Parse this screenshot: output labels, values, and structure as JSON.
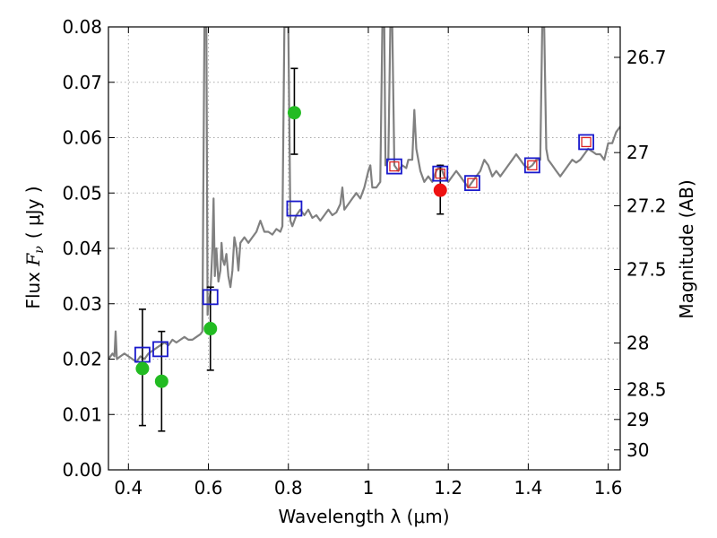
{
  "chart_data": {
    "type": "scatter",
    "xlabel": "Wavelength  λ (μm)",
    "ylabel_left": {
      "prefix": "Flux ",
      "symbol": "F",
      "subscript": "ν",
      "unit": "( μJy )"
    },
    "ylabel_right": "Magnitude (AB)",
    "xlim": [
      0.35,
      1.63
    ],
    "ylim": [
      0.0,
      0.08
    ],
    "grid": true,
    "x_ticks": [
      0.4,
      0.6,
      0.8,
      1.0,
      1.2,
      1.4,
      1.6
    ],
    "x_tick_labels": [
      "0.4",
      "0.6",
      "0.8",
      "1",
      "1.2",
      "1.4",
      "1.6"
    ],
    "y_ticks": [
      0.0,
      0.01,
      0.02,
      0.03,
      0.04,
      0.05,
      0.06,
      0.07,
      0.08
    ],
    "y_tick_labels": [
      "0.00",
      "0.01",
      "0.02",
      "0.03",
      "0.04",
      "0.05",
      "0.06",
      "0.07",
      "0.08"
    ],
    "right_axis_ticks": [
      {
        "label": "26.7",
        "flux": 0.0745
      },
      {
        "label": "27",
        "flux": 0.0573
      },
      {
        "label": "27.2",
        "flux": 0.0477
      },
      {
        "label": "27.5",
        "flux": 0.0362
      },
      {
        "label": "28",
        "flux": 0.0229
      },
      {
        "label": "28.5",
        "flux": 0.0145
      },
      {
        "label": "29",
        "flux": 0.0091
      },
      {
        "label": "30",
        "flux": 0.0036
      }
    ],
    "colors": {
      "spectrum": "#808080",
      "green_points": "#22bb22",
      "red_points": "#ee1111",
      "blue_squares": "#1a1acc",
      "red_squares": "#dd2222",
      "grid": "#aaaaaa",
      "errorbar": "#000000"
    },
    "spectrum": [
      [
        0.35,
        0.02
      ],
      [
        0.36,
        0.021
      ],
      [
        0.365,
        0.0205
      ],
      [
        0.368,
        0.025
      ],
      [
        0.371,
        0.02
      ],
      [
        0.38,
        0.0205
      ],
      [
        0.39,
        0.021
      ],
      [
        0.4,
        0.0205
      ],
      [
        0.41,
        0.02
      ],
      [
        0.42,
        0.0195
      ],
      [
        0.43,
        0.0205
      ],
      [
        0.44,
        0.02
      ],
      [
        0.45,
        0.021
      ],
      [
        0.46,
        0.0215
      ],
      [
        0.47,
        0.022
      ],
      [
        0.48,
        0.0225
      ],
      [
        0.49,
        0.023
      ],
      [
        0.5,
        0.0225
      ],
      [
        0.51,
        0.0235
      ],
      [
        0.52,
        0.023
      ],
      [
        0.53,
        0.0235
      ],
      [
        0.54,
        0.024
      ],
      [
        0.55,
        0.0235
      ],
      [
        0.56,
        0.0235
      ],
      [
        0.57,
        0.024
      ],
      [
        0.58,
        0.0245
      ],
      [
        0.585,
        0.025
      ],
      [
        0.59,
        0.08
      ],
      [
        0.595,
        0.08
      ],
      [
        0.598,
        0.028
      ],
      [
        0.6,
        0.03
      ],
      [
        0.605,
        0.032
      ],
      [
        0.61,
        0.04
      ],
      [
        0.613,
        0.049
      ],
      [
        0.616,
        0.035
      ],
      [
        0.62,
        0.04
      ],
      [
        0.625,
        0.034
      ],
      [
        0.63,
        0.036
      ],
      [
        0.633,
        0.041
      ],
      [
        0.636,
        0.038
      ],
      [
        0.64,
        0.037
      ],
      [
        0.645,
        0.039
      ],
      [
        0.65,
        0.035
      ],
      [
        0.655,
        0.033
      ],
      [
        0.66,
        0.036
      ],
      [
        0.665,
        0.042
      ],
      [
        0.67,
        0.04
      ],
      [
        0.675,
        0.036
      ],
      [
        0.68,
        0.041
      ],
      [
        0.69,
        0.042
      ],
      [
        0.7,
        0.041
      ],
      [
        0.71,
        0.042
      ],
      [
        0.72,
        0.043
      ],
      [
        0.73,
        0.045
      ],
      [
        0.74,
        0.043
      ],
      [
        0.75,
        0.043
      ],
      [
        0.76,
        0.0425
      ],
      [
        0.77,
        0.0435
      ],
      [
        0.78,
        0.043
      ],
      [
        0.785,
        0.044
      ],
      [
        0.79,
        0.08
      ],
      [
        0.8,
        0.08
      ],
      [
        0.805,
        0.045
      ],
      [
        0.81,
        0.044
      ],
      [
        0.82,
        0.046
      ],
      [
        0.83,
        0.047
      ],
      [
        0.84,
        0.046
      ],
      [
        0.85,
        0.047
      ],
      [
        0.86,
        0.0455
      ],
      [
        0.87,
        0.046
      ],
      [
        0.88,
        0.045
      ],
      [
        0.89,
        0.046
      ],
      [
        0.9,
        0.047
      ],
      [
        0.91,
        0.046
      ],
      [
        0.92,
        0.0465
      ],
      [
        0.93,
        0.048
      ],
      [
        0.935,
        0.051
      ],
      [
        0.94,
        0.047
      ],
      [
        0.95,
        0.048
      ],
      [
        0.96,
        0.049
      ],
      [
        0.97,
        0.05
      ],
      [
        0.98,
        0.049
      ],
      [
        0.99,
        0.051
      ],
      [
        1.0,
        0.054
      ],
      [
        1.005,
        0.055
      ],
      [
        1.01,
        0.051
      ],
      [
        1.02,
        0.051
      ],
      [
        1.03,
        0.052
      ],
      [
        1.035,
        0.08
      ],
      [
        1.04,
        0.08
      ],
      [
        1.043,
        0.055
      ],
      [
        1.05,
        0.056
      ],
      [
        1.055,
        0.08
      ],
      [
        1.06,
        0.08
      ],
      [
        1.065,
        0.055
      ],
      [
        1.075,
        0.054
      ],
      [
        1.085,
        0.055
      ],
      [
        1.095,
        0.0545
      ],
      [
        1.1,
        0.056
      ],
      [
        1.11,
        0.056
      ],
      [
        1.115,
        0.065
      ],
      [
        1.12,
        0.058
      ],
      [
        1.13,
        0.054
      ],
      [
        1.14,
        0.052
      ],
      [
        1.15,
        0.053
      ],
      [
        1.16,
        0.052
      ],
      [
        1.17,
        0.054
      ],
      [
        1.18,
        0.055
      ],
      [
        1.19,
        0.053
      ],
      [
        1.2,
        0.052
      ],
      [
        1.21,
        0.053
      ],
      [
        1.22,
        0.054
      ],
      [
        1.23,
        0.053
      ],
      [
        1.24,
        0.052
      ],
      [
        1.25,
        0.051
      ],
      [
        1.26,
        0.052
      ],
      [
        1.27,
        0.053
      ],
      [
        1.28,
        0.054
      ],
      [
        1.29,
        0.056
      ],
      [
        1.3,
        0.055
      ],
      [
        1.31,
        0.053
      ],
      [
        1.32,
        0.054
      ],
      [
        1.33,
        0.053
      ],
      [
        1.34,
        0.054
      ],
      [
        1.35,
        0.055
      ],
      [
        1.36,
        0.056
      ],
      [
        1.37,
        0.057
      ],
      [
        1.38,
        0.056
      ],
      [
        1.39,
        0.055
      ],
      [
        1.4,
        0.0545
      ],
      [
        1.41,
        0.055
      ],
      [
        1.42,
        0.056
      ],
      [
        1.43,
        0.056
      ],
      [
        1.435,
        0.08
      ],
      [
        1.44,
        0.08
      ],
      [
        1.445,
        0.058
      ],
      [
        1.45,
        0.056
      ],
      [
        1.46,
        0.055
      ],
      [
        1.47,
        0.054
      ],
      [
        1.48,
        0.053
      ],
      [
        1.49,
        0.054
      ],
      [
        1.5,
        0.055
      ],
      [
        1.51,
        0.056
      ],
      [
        1.52,
        0.0555
      ],
      [
        1.53,
        0.056
      ],
      [
        1.54,
        0.057
      ],
      [
        1.55,
        0.058
      ],
      [
        1.56,
        0.0575
      ],
      [
        1.57,
        0.057
      ],
      [
        1.58,
        0.057
      ],
      [
        1.59,
        0.056
      ],
      [
        1.6,
        0.059
      ],
      [
        1.61,
        0.059
      ],
      [
        1.62,
        0.061
      ],
      [
        1.63,
        0.062
      ]
    ],
    "green_points": [
      {
        "x": 0.435,
        "y": 0.0183,
        "yerr_low": 0.008,
        "yerr_high": 0.029
      },
      {
        "x": 0.483,
        "y": 0.016,
        "yerr_low": 0.007,
        "yerr_high": 0.025
      },
      {
        "x": 0.605,
        "y": 0.0255,
        "yerr_low": 0.018,
        "yerr_high": 0.033
      },
      {
        "x": 0.815,
        "y": 0.0645,
        "yerr_low": 0.057,
        "yerr_high": 0.0725
      }
    ],
    "red_points": [
      {
        "x": 1.18,
        "y": 0.0505,
        "yerr_low": 0.0462,
        "yerr_high": 0.055
      }
    ],
    "blue_squares": [
      {
        "x": 0.435,
        "y": 0.0208
      },
      {
        "x": 0.48,
        "y": 0.0218
      },
      {
        "x": 0.605,
        "y": 0.0312
      },
      {
        "x": 0.815,
        "y": 0.0472
      },
      {
        "x": 1.065,
        "y": 0.0548
      },
      {
        "x": 1.18,
        "y": 0.0535
      },
      {
        "x": 1.26,
        "y": 0.0518
      },
      {
        "x": 1.41,
        "y": 0.055
      },
      {
        "x": 1.545,
        "y": 0.0592
      }
    ],
    "red_squares": [
      {
        "x": 1.065,
        "y": 0.0548
      },
      {
        "x": 1.18,
        "y": 0.0535
      },
      {
        "x": 1.26,
        "y": 0.0518
      },
      {
        "x": 1.41,
        "y": 0.055
      },
      {
        "x": 1.545,
        "y": 0.0592
      }
    ]
  }
}
